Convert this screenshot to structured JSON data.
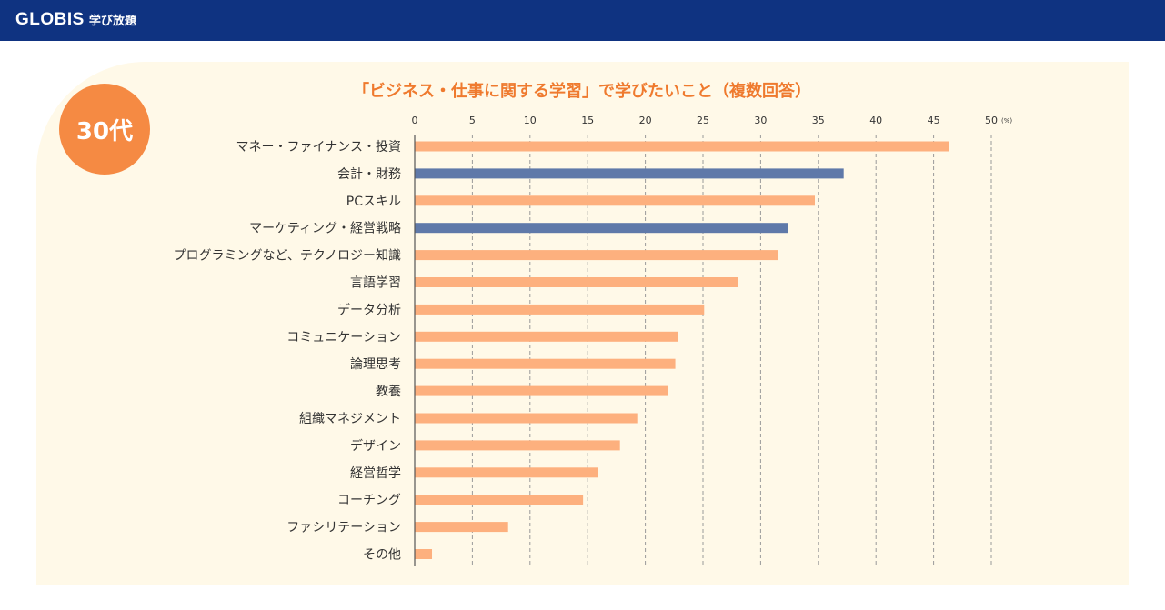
{
  "header": {
    "logo_text": "GLOBIS",
    "logo_sub": "学び放題",
    "colors": {
      "bar": "#0f3381"
    }
  },
  "badge": {
    "label": "30代"
  },
  "chart_data": {
    "type": "bar",
    "orientation": "horizontal",
    "title": "「ビジネス・仕事に関する学習」で学びたいこと（複数回答）",
    "unit": "(%)",
    "xlim": [
      0,
      50
    ],
    "ticks": [
      0,
      5,
      10,
      15,
      20,
      25,
      30,
      35,
      40,
      45,
      50
    ],
    "grid": true,
    "categories": [
      "マネー・ファイナンス・投資",
      "会計・財務",
      "PCスキル",
      "マーケティング・経営戦略",
      "プログラミングなど、テクノロジー知識",
      "言語学習",
      "データ分析",
      "コミュニケーション",
      "論理思考",
      "教養",
      "組織マネジメント",
      "デザイン",
      "経営哲学",
      "コーチング",
      "ファシリテーション",
      "その他"
    ],
    "values": [
      46.3,
      37.2,
      34.7,
      32.4,
      31.5,
      28.0,
      25.1,
      22.8,
      22.6,
      22.0,
      19.3,
      17.8,
      15.9,
      14.6,
      8.1,
      1.5
    ],
    "highlight": [
      false,
      true,
      false,
      true,
      false,
      false,
      false,
      false,
      false,
      false,
      false,
      false,
      false,
      false,
      false,
      false
    ],
    "colors": {
      "default": "#fdb07e",
      "highlight": "#5f79a9",
      "accent": "#f58a43"
    }
  }
}
